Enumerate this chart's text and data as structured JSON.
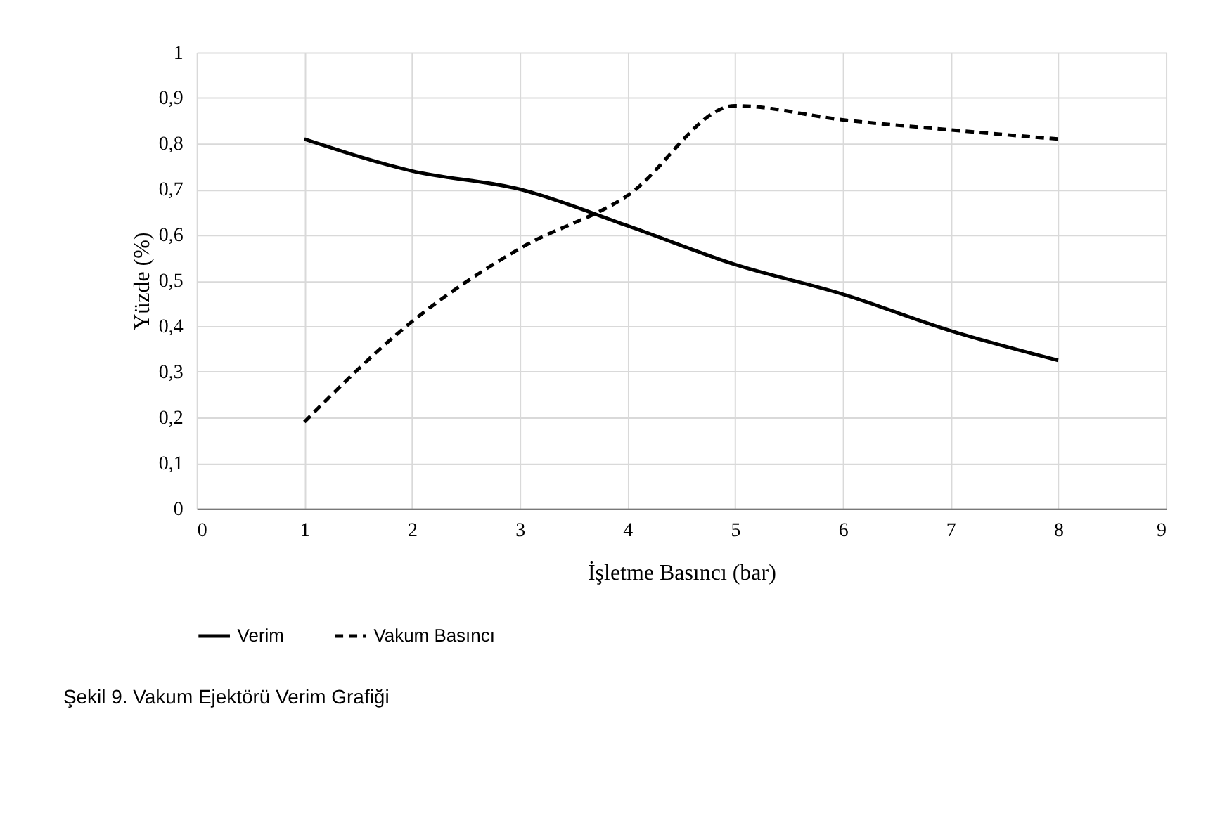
{
  "chart_data": {
    "type": "line",
    "xlabel": "İşletme Basıncı (bar)",
    "ylabel": "Yüzde (%)",
    "x": [
      1,
      2,
      3,
      4,
      5,
      6,
      7,
      8
    ],
    "series": [
      {
        "name": "Verim",
        "color": "#000000",
        "line_style": "solid",
        "values": [
          0.81,
          0.74,
          0.7,
          0.62,
          0.535,
          0.47,
          0.39,
          0.325
        ]
      },
      {
        "name": "Vakum Basıncı",
        "color": "#000000",
        "line_style": "dashed",
        "values": [
          0.19,
          0.41,
          0.57,
          0.686,
          0.883,
          0.852,
          0.83,
          0.81
        ]
      }
    ],
    "xlim": [
      0,
      9
    ],
    "xticks": [
      0,
      1,
      2,
      3,
      4,
      5,
      6,
      7,
      8,
      9
    ],
    "ylim": [
      0,
      1
    ],
    "yticks": [
      0,
      {
        "value": 0.1,
        "label": "0,1"
      },
      {
        "value": 0.2,
        "label": "0,2"
      },
      {
        "value": 0.3,
        "label": "0,3"
      },
      {
        "value": 0.4,
        "label": "0,4"
      },
      {
        "value": 0.5,
        "label": "0,5"
      },
      {
        "value": 0.6,
        "label": "0,6"
      },
      {
        "value": 0.7,
        "label": "0,7"
      },
      {
        "value": 0.8,
        "label": "0,8"
      },
      {
        "value": 0.9,
        "label": "0,9"
      },
      1
    ],
    "grid": true,
    "legend": "bottom",
    "marker": "none",
    "annotations": [
      "Şekil 9. Vakum Ejektörü Verim Grafiği"
    ]
  }
}
